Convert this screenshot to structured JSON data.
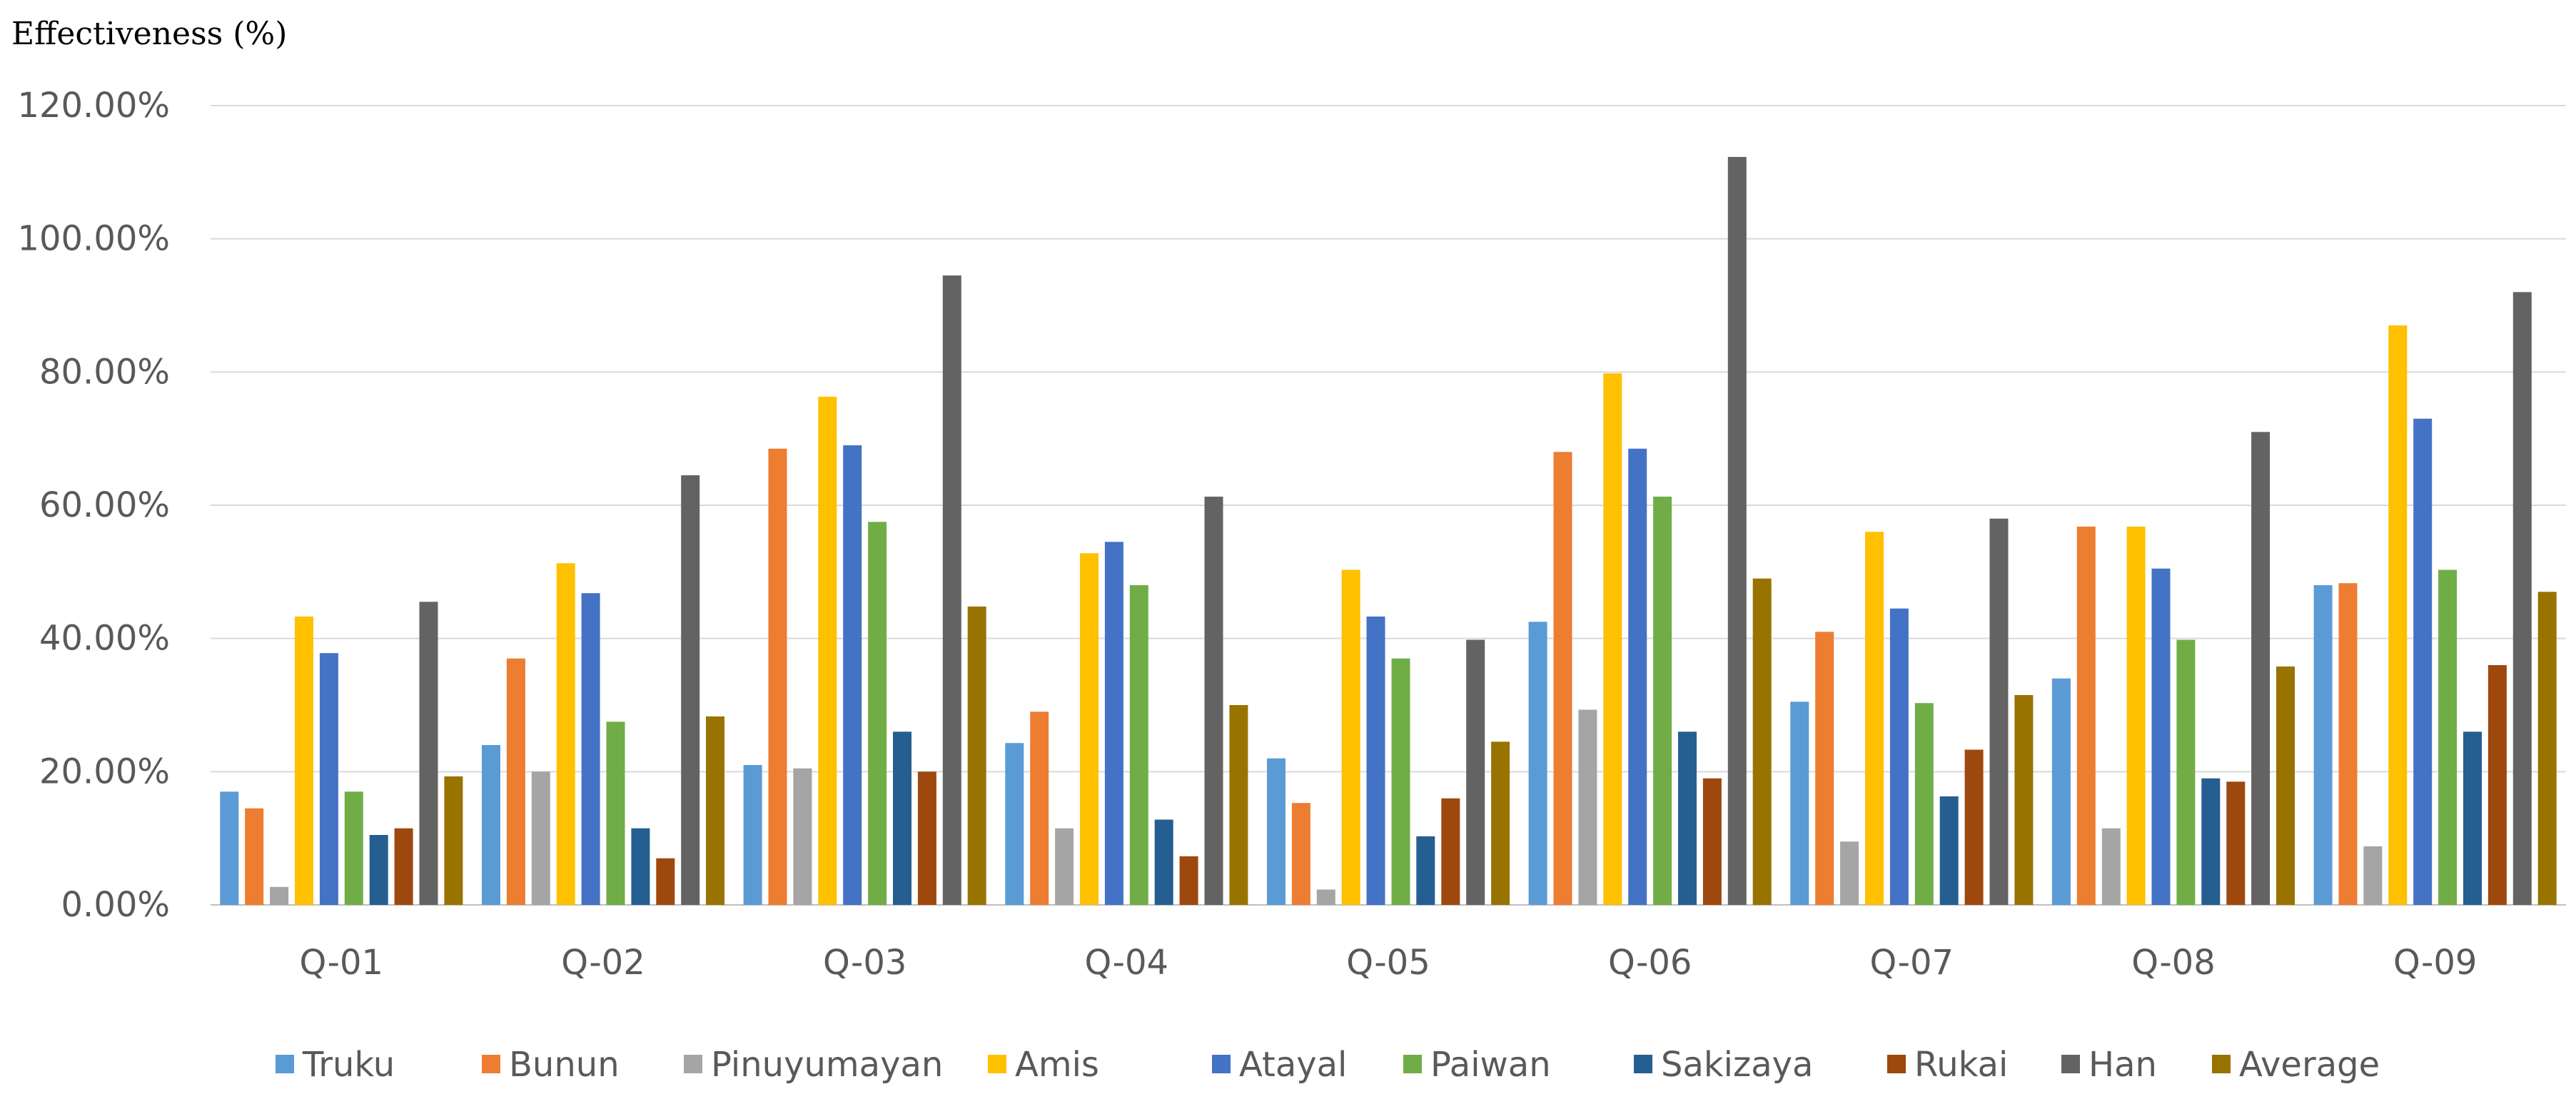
{
  "chart_data": {
    "type": "bar",
    "ylabel": "Effectiveness (%)",
    "xlabel": "",
    "ylim": [
      0,
      120
    ],
    "yticks": [
      0,
      20,
      40,
      60,
      80,
      100,
      120
    ],
    "ytick_labels": [
      "0.00%",
      "20.00%",
      "40.00%",
      "60.00%",
      "80.00%",
      "100.00%",
      "120.00%"
    ],
    "grid": true,
    "legend_position": "bottom",
    "categories": [
      "Q-01",
      "Q-02",
      "Q-03",
      "Q-04",
      "Q-05",
      "Q-06",
      "Q-07",
      "Q-08",
      "Q-09"
    ],
    "series": [
      {
        "name": "Truku",
        "color": "#5b9bd5",
        "values": [
          17,
          24,
          21,
          24.3,
          22,
          42.5,
          30.5,
          34,
          48
        ]
      },
      {
        "name": "Bunun",
        "color": "#ed7d31",
        "values": [
          14.5,
          37,
          68.5,
          29,
          15.3,
          68,
          41,
          56.8,
          48.3
        ]
      },
      {
        "name": "Pinuyumayan",
        "color": "#a5a5a5",
        "values": [
          2.7,
          20,
          20.5,
          11.5,
          2.3,
          29.3,
          9.5,
          11.5,
          8.8
        ]
      },
      {
        "name": "Amis",
        "color": "#ffc000",
        "values": [
          43.3,
          51.3,
          76.3,
          52.8,
          50.3,
          79.8,
          56,
          56.8,
          87
        ]
      },
      {
        "name": "Atayal",
        "color": "#4472c4",
        "values": [
          37.8,
          46.8,
          69,
          54.5,
          43.3,
          68.5,
          44.5,
          50.5,
          73
        ]
      },
      {
        "name": "Paiwan",
        "color": "#70ad47",
        "values": [
          17,
          27.5,
          57.5,
          48,
          37,
          61.3,
          30.3,
          39.8,
          50.3
        ]
      },
      {
        "name": "Sakizaya",
        "color": "#255e91",
        "values": [
          10.5,
          11.5,
          26,
          12.8,
          10.3,
          26,
          16.3,
          19,
          26
        ]
      },
      {
        "name": "Rukai",
        "color": "#9e480e",
        "values": [
          11.5,
          7,
          20,
          7.3,
          16,
          19,
          23.3,
          18.5,
          36
        ]
      },
      {
        "name": "Han",
        "color": "#636363",
        "values": [
          45.5,
          64.5,
          94.5,
          61.3,
          39.8,
          112.3,
          58,
          71,
          92
        ]
      },
      {
        "name": "Average",
        "color": "#997300",
        "values": [
          19.3,
          28.3,
          44.8,
          30,
          24.5,
          49,
          31.5,
          35.8,
          47
        ]
      }
    ]
  }
}
